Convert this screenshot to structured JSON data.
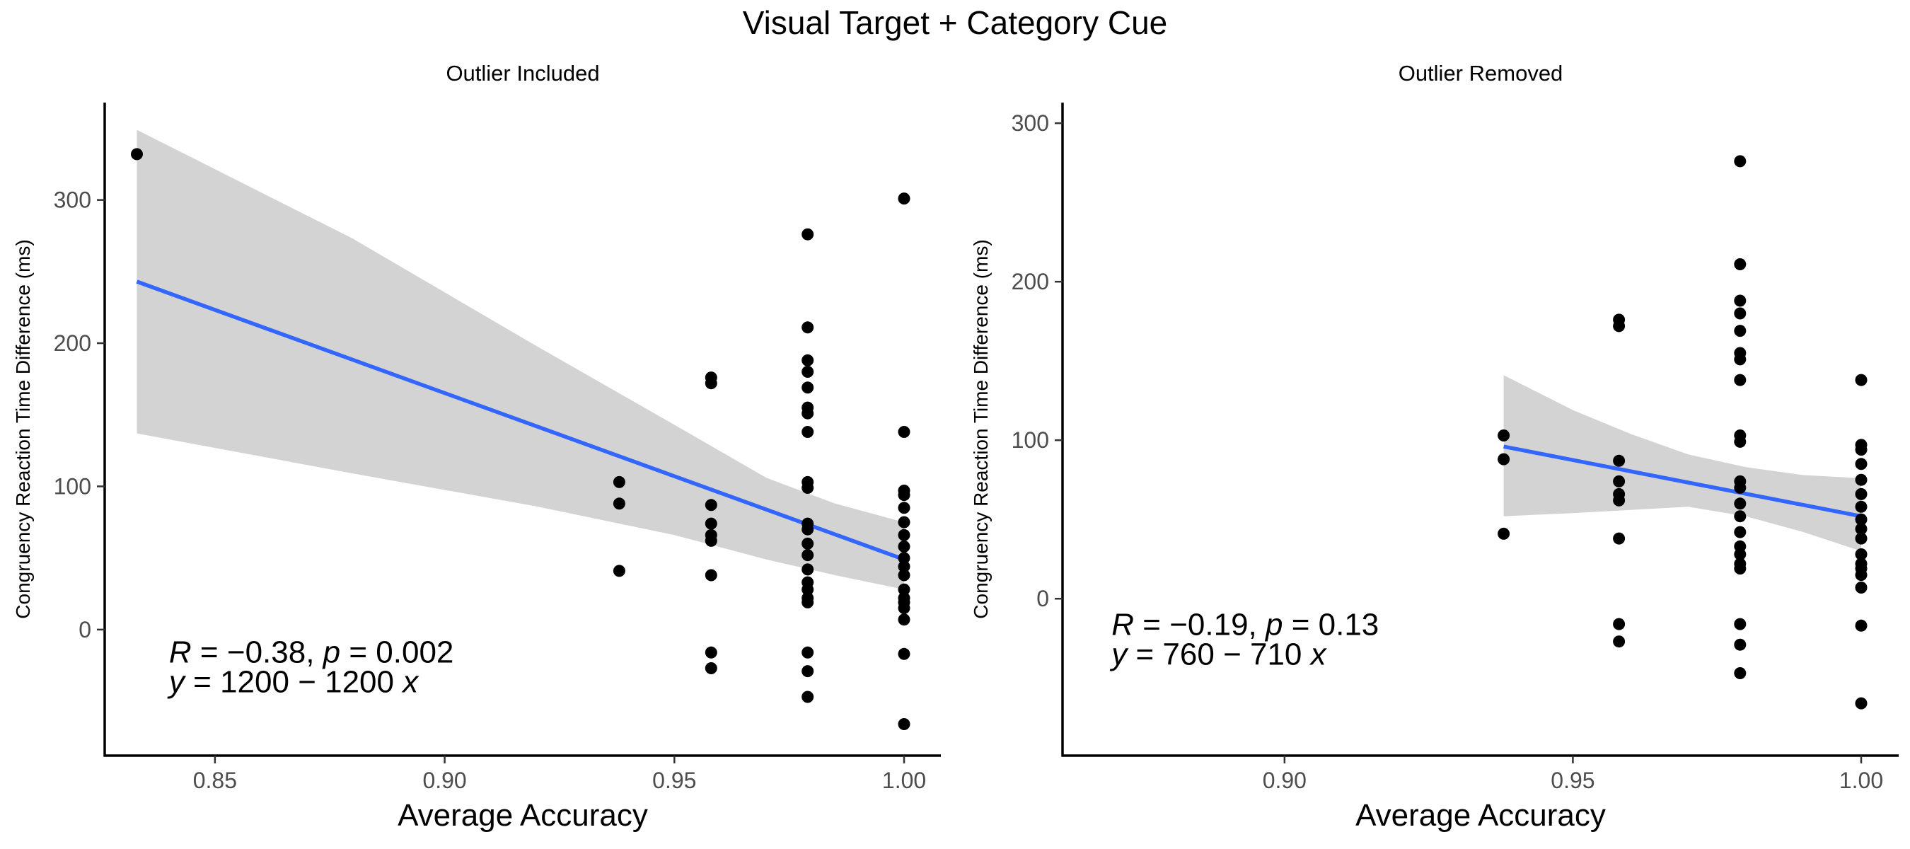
{
  "title": "Visual Target + Category Cue",
  "colors": {
    "points": "#000000",
    "fit_line": "#3366FF",
    "confidence_band": "#D3D3D3",
    "tick_text": "#4D4D4D"
  },
  "chart_data": [
    {
      "type": "scatter",
      "facet_label": "Outlier Included",
      "xlabel": "Average Accuracy",
      "ylabel": "Congruency Reaction Time Difference (ms)",
      "xlim": [
        0.826,
        1.008
      ],
      "ylim": [
        -88,
        368
      ],
      "x_ticks": [
        0.85,
        0.9,
        0.95,
        1.0
      ],
      "x_tick_labels": [
        "0.85",
        "0.90",
        "0.95",
        "1.00"
      ],
      "y_ticks": [
        0,
        100,
        200,
        300
      ],
      "y_tick_labels": [
        "0",
        "100",
        "200",
        "300"
      ],
      "points": [
        [
          0.833,
          332
        ],
        [
          0.938,
          103
        ],
        [
          0.938,
          88
        ],
        [
          0.938,
          41
        ],
        [
          0.958,
          176
        ],
        [
          0.958,
          172
        ],
        [
          0.958,
          87
        ],
        [
          0.958,
          74
        ],
        [
          0.958,
          66
        ],
        [
          0.958,
          62
        ],
        [
          0.958,
          38
        ],
        [
          0.958,
          -16
        ],
        [
          0.958,
          -27
        ],
        [
          0.979,
          276
        ],
        [
          0.979,
          211
        ],
        [
          0.979,
          188
        ],
        [
          0.979,
          180
        ],
        [
          0.979,
          169
        ],
        [
          0.979,
          155
        ],
        [
          0.979,
          151
        ],
        [
          0.979,
          138
        ],
        [
          0.979,
          103
        ],
        [
          0.979,
          99
        ],
        [
          0.979,
          74
        ],
        [
          0.979,
          70
        ],
        [
          0.979,
          60
        ],
        [
          0.979,
          52
        ],
        [
          0.979,
          42
        ],
        [
          0.979,
          33
        ],
        [
          0.979,
          28
        ],
        [
          0.979,
          22
        ],
        [
          0.979,
          19
        ],
        [
          0.979,
          -16
        ],
        [
          0.979,
          -29
        ],
        [
          0.979,
          -47
        ],
        [
          1.0,
          301
        ],
        [
          1.0,
          138
        ],
        [
          1.0,
          97
        ],
        [
          1.0,
          94
        ],
        [
          1.0,
          85
        ],
        [
          1.0,
          75
        ],
        [
          1.0,
          66
        ],
        [
          1.0,
          58
        ],
        [
          1.0,
          50
        ],
        [
          1.0,
          44
        ],
        [
          1.0,
          38
        ],
        [
          1.0,
          28
        ],
        [
          1.0,
          22
        ],
        [
          1.0,
          19
        ],
        [
          1.0,
          15
        ],
        [
          1.0,
          7
        ],
        [
          1.0,
          -17
        ],
        [
          1.0,
          -66
        ]
      ],
      "fit_line": [
        [
          0.833,
          243
        ],
        [
          1.0,
          49
        ]
      ],
      "confidence_band": {
        "x": [
          0.833,
          0.88,
          0.92,
          0.95,
          0.97,
          0.985,
          1.0
        ],
        "upper": [
          349,
          273,
          198,
          143,
          106,
          88,
          75
        ],
        "lower": [
          137,
          109,
          86,
          66,
          49,
          38,
          28
        ]
      },
      "annotation": {
        "line1_parts": [
          "R",
          " = ",
          "−",
          "0.38, ",
          "p",
          " = 0.002"
        ],
        "line2_parts": [
          "y",
          " = 1200 ",
          "−",
          " 1200 ",
          "x"
        ],
        "anchor": [
          0.84,
          -23
        ]
      }
    },
    {
      "type": "scatter",
      "facet_label": "Outlier Removed",
      "xlabel": "Average Accuracy",
      "ylabel": "Congruency Reaction Time Difference (ms)",
      "xlim": [
        0.8615,
        1.0065
      ],
      "ylim": [
        -99,
        313
      ],
      "x_ticks": [
        0.9,
        0.95,
        1.0
      ],
      "x_tick_labels": [
        "0.90",
        "0.95",
        "1.00"
      ],
      "y_ticks": [
        0,
        100,
        200,
        300
      ],
      "y_tick_labels": [
        "0",
        "100",
        "200",
        "300"
      ],
      "points": [
        [
          0.938,
          103
        ],
        [
          0.938,
          88
        ],
        [
          0.938,
          41
        ],
        [
          0.958,
          176
        ],
        [
          0.958,
          172
        ],
        [
          0.958,
          87
        ],
        [
          0.958,
          74
        ],
        [
          0.958,
          66
        ],
        [
          0.958,
          62
        ],
        [
          0.958,
          38
        ],
        [
          0.958,
          -16
        ],
        [
          0.958,
          -27
        ],
        [
          0.979,
          276
        ],
        [
          0.979,
          211
        ],
        [
          0.979,
          188
        ],
        [
          0.979,
          180
        ],
        [
          0.979,
          169
        ],
        [
          0.979,
          155
        ],
        [
          0.979,
          151
        ],
        [
          0.979,
          138
        ],
        [
          0.979,
          103
        ],
        [
          0.979,
          99
        ],
        [
          0.979,
          74
        ],
        [
          0.979,
          70
        ],
        [
          0.979,
          60
        ],
        [
          0.979,
          52
        ],
        [
          0.979,
          42
        ],
        [
          0.979,
          33
        ],
        [
          0.979,
          28
        ],
        [
          0.979,
          22
        ],
        [
          0.979,
          19
        ],
        [
          0.979,
          -16
        ],
        [
          0.979,
          -29
        ],
        [
          0.979,
          -47
        ],
        [
          1.0,
          138
        ],
        [
          1.0,
          97
        ],
        [
          1.0,
          94
        ],
        [
          1.0,
          85
        ],
        [
          1.0,
          75
        ],
        [
          1.0,
          66
        ],
        [
          1.0,
          58
        ],
        [
          1.0,
          50
        ],
        [
          1.0,
          44
        ],
        [
          1.0,
          38
        ],
        [
          1.0,
          28
        ],
        [
          1.0,
          22
        ],
        [
          1.0,
          19
        ],
        [
          1.0,
          15
        ],
        [
          1.0,
          7
        ],
        [
          1.0,
          -17
        ],
        [
          1.0,
          -66
        ]
      ],
      "fit_line": [
        [
          0.938,
          96
        ],
        [
          1.0,
          52
        ]
      ],
      "confidence_band": {
        "x": [
          0.938,
          0.95,
          0.96,
          0.97,
          0.98,
          0.99,
          1.0
        ],
        "upper": [
          141,
          119,
          104,
          91,
          83,
          78,
          76
        ],
        "lower": [
          52,
          54,
          56,
          58,
          52,
          42,
          30
        ]
      },
      "annotation": {
        "line1_parts": [
          "R",
          " = ",
          "−",
          "0.19, ",
          "p",
          " = 0.13"
        ],
        "line2_parts": [
          "y",
          " = 760 ",
          "−",
          " 710 ",
          "x"
        ],
        "anchor": [
          0.87,
          -23
        ]
      }
    }
  ]
}
